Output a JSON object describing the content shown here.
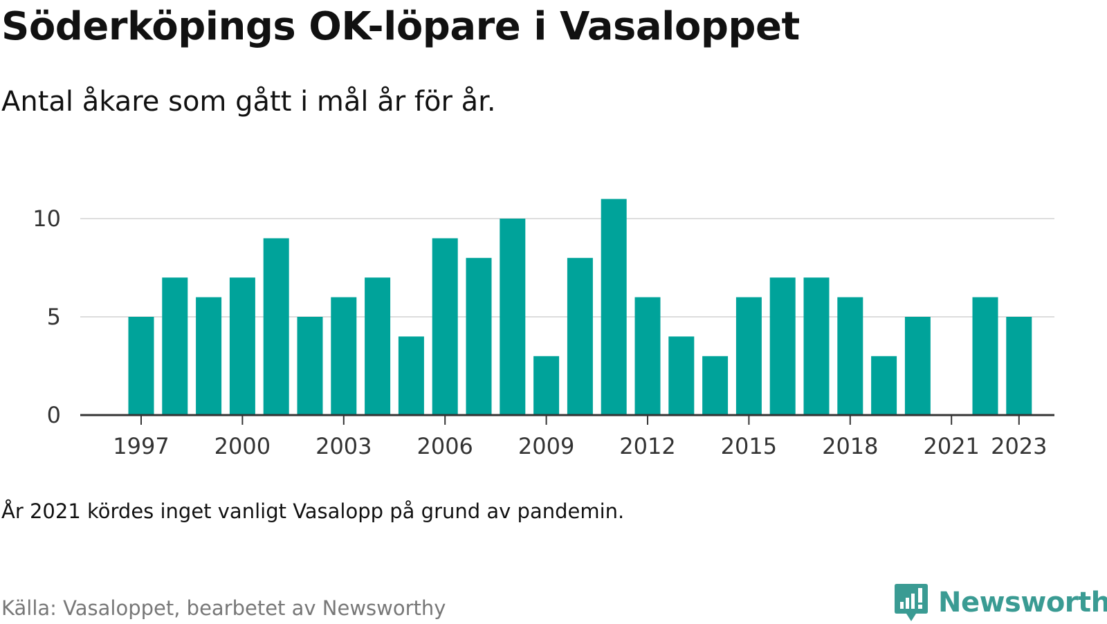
{
  "title": "Söderköpings OK-löpare i Vasaloppet",
  "subtitle": "Antal åkare som gått i mål år för år.",
  "note": "År 2021 kördes inget vanligt Vasalopp på grund av pandemin.",
  "source": "Källa: Vasaloppet, bearbetet av Newsworthy",
  "brand": {
    "name": "Newsworthy",
    "icon": "newsworthy-logo-icon",
    "color": "#3a9b93"
  },
  "chart_data": {
    "type": "bar",
    "x": [
      1997,
      1998,
      1999,
      2000,
      2001,
      2002,
      2003,
      2004,
      2005,
      2006,
      2007,
      2008,
      2009,
      2010,
      2011,
      2012,
      2013,
      2014,
      2015,
      2016,
      2017,
      2018,
      2019,
      2020,
      2021,
      2022,
      2023
    ],
    "values": [
      5,
      7,
      6,
      7,
      9,
      5,
      6,
      7,
      4,
      9,
      8,
      10,
      3,
      8,
      11,
      6,
      4,
      3,
      6,
      7,
      7,
      6,
      3,
      5,
      null,
      6,
      5
    ],
    "title": "Söderköpings OK-löpare i Vasaloppet",
    "subtitle": "Antal åkare som gått i mål år för år.",
    "xlabel": "",
    "ylabel": "",
    "ylim": [
      0,
      11
    ],
    "yticks": [
      0,
      5,
      10
    ],
    "xticks": [
      1997,
      2000,
      2003,
      2006,
      2009,
      2012,
      2015,
      2018,
      2021,
      2023
    ],
    "grid": true,
    "legend": "none",
    "bar_color": "#00a39a",
    "grid_color": "#dddddd",
    "axis_color": "#333333"
  }
}
